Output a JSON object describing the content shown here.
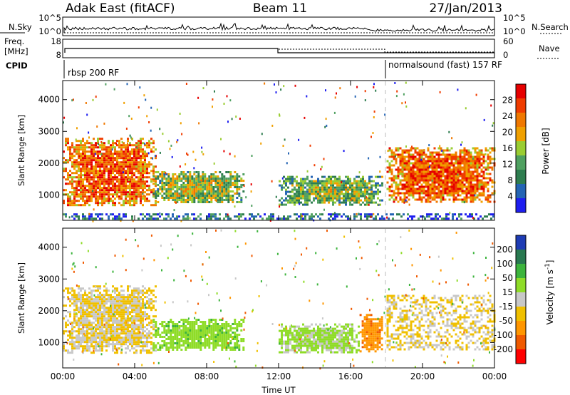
{
  "header": {
    "radar": "Adak East (fitACF)",
    "beam": "Beam 11",
    "date": "27/Jan/2013"
  },
  "noise_panel": {
    "left_label": "N.Sky",
    "right_label": "N.Search",
    "left_ticks": [
      "10^5",
      "10^0"
    ],
    "right_ticks": [
      "10^5",
      "10^0"
    ]
  },
  "freq_panel": {
    "left_label_1": "Freq.",
    "left_label_2": "[MHz]",
    "right_label": "Nave",
    "left_ticks": [
      "18",
      "8"
    ],
    "right_ticks": [
      "60",
      "0"
    ]
  },
  "cpid": {
    "label": "CPID",
    "segments": [
      {
        "text": "rbsp 200 RF",
        "start_hour": 0
      },
      {
        "text": "normalsound (fast) 157 RF",
        "start_hour": 18
      }
    ]
  },
  "colors": {
    "power": [
      "#1e1ef0",
      "#2464b4",
      "#2e7d4f",
      "#4fa060",
      "#9acd32",
      "#f0a000",
      "#f07800",
      "#f03c00",
      "#e60000"
    ],
    "velocity": [
      "#ff0000",
      "#f05a00",
      "#ff9600",
      "#f0c000",
      "#c8c8c8",
      "#8fdc28",
      "#3cb43c",
      "#287850",
      "#1e3cb4"
    ]
  },
  "chart_data": [
    {
      "type": "heatmap",
      "name": "power",
      "xlabel": "",
      "ylabel": "Slant Range [km]",
      "xlim": [
        0,
        24
      ],
      "ylim": [
        200,
        4600
      ],
      "x_tick_labels": [
        "00:00",
        "04:00",
        "08:00",
        "12:00",
        "16:00",
        "20:00",
        "00:00"
      ],
      "y_ticks": [
        1000,
        2000,
        3000,
        4000
      ],
      "colorbar": {
        "label": "Power [dB]",
        "ticks": [
          4,
          8,
          12,
          16,
          20,
          24,
          28
        ],
        "range": [
          0,
          32
        ]
      },
      "regions": [
        {
          "t0": 0.0,
          "t1": 5.2,
          "r0": 650,
          "r1": 2800,
          "value": 27
        },
        {
          "t0": 5.0,
          "t1": 10.0,
          "r0": 750,
          "r1": 1750,
          "value": 18
        },
        {
          "t0": 12.0,
          "t1": 17.8,
          "r0": 700,
          "r1": 1600,
          "value": 16
        },
        {
          "t0": 18.0,
          "t1": 24.0,
          "r0": 750,
          "r1": 2500,
          "value": 27
        },
        {
          "t0": 0.0,
          "t1": 24.0,
          "r0": 250,
          "r1": 420,
          "value": 10
        }
      ]
    },
    {
      "type": "heatmap",
      "name": "velocity",
      "xlabel": "Time UT",
      "ylabel": "Slant Range [km]",
      "xlim": [
        0,
        24
      ],
      "ylim": [
        200,
        4600
      ],
      "x_tick_labels": [
        "00:00",
        "04:00",
        "08:00",
        "12:00",
        "16:00",
        "20:00",
        "00:00"
      ],
      "y_ticks": [
        1000,
        2000,
        3000,
        4000
      ],
      "colorbar": {
        "label": "Velocity [m s^-1]",
        "ticks": [
          200,
          100,
          50,
          15,
          -15,
          -50,
          -100,
          -200
        ]
      },
      "regions": [
        {
          "t0": 0.0,
          "t1": 5.2,
          "r0": 650,
          "r1": 2800,
          "value": 0
        },
        {
          "t0": 5.0,
          "t1": 10.0,
          "r0": 750,
          "r1": 1750,
          "value": 60
        },
        {
          "t0": 12.0,
          "t1": 16.5,
          "r0": 700,
          "r1": 1600,
          "value": 40
        },
        {
          "t0": 16.5,
          "t1": 17.8,
          "r0": 700,
          "r1": 1900,
          "value": -60
        },
        {
          "t0": 18.0,
          "t1": 24.0,
          "r0": 750,
          "r1": 2500,
          "value": 0
        }
      ]
    }
  ]
}
